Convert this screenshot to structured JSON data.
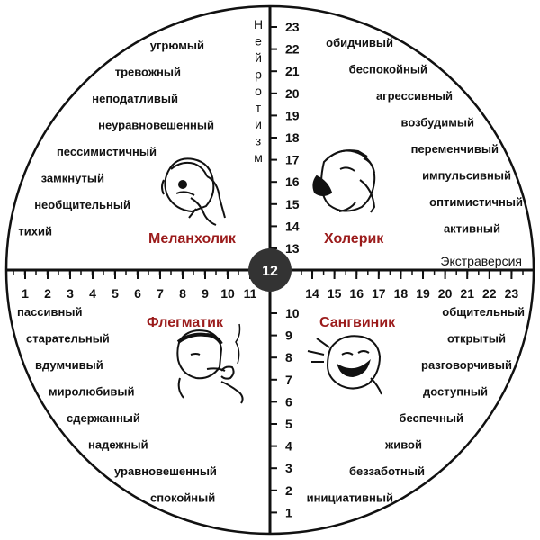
{
  "axes": {
    "vertical_label": "Нейротизм",
    "horizontal_label": "Экстраверсия",
    "center": "12",
    "top_ticks": [
      "23",
      "22",
      "21",
      "20",
      "19",
      "18",
      "17",
      "16",
      "15",
      "14",
      "13"
    ],
    "bottom_ticks": [
      "10",
      "9",
      "8",
      "7",
      "6",
      "5",
      "4",
      "3",
      "2",
      "1"
    ],
    "left_ticks": [
      "1",
      "2",
      "3",
      "4",
      "5",
      "6",
      "7",
      "8",
      "9",
      "10",
      "11"
    ],
    "right_ticks": [
      "14",
      "15",
      "16",
      "17",
      "18",
      "19",
      "20",
      "21",
      "22",
      "23"
    ]
  },
  "quadrants": {
    "melancholic": {
      "name": "Меланхолик",
      "traits": [
        "угрюмый",
        "тревожный",
        "неподатливый",
        "неуравновешенный",
        "пессимистичный",
        "замкнутый",
        "необщительный",
        "тихий"
      ]
    },
    "choleric": {
      "name": "Холерик",
      "traits": [
        "обидчивый",
        "беспокойный",
        "агрессивный",
        "возбудимый",
        "переменчивый",
        "импульсивный",
        "оптимистичный",
        "активный"
      ]
    },
    "phlegmatic": {
      "name": "Флегматик",
      "traits": [
        "пассивный",
        "старательный",
        "вдумчивый",
        "миролюбивый",
        "сдержанный",
        "надежный",
        "уравновешенный",
        "спокойный"
      ]
    },
    "sanguine": {
      "name": "Сангвиник",
      "traits": [
        "общительный",
        "открытый",
        "разговорчивый",
        "доступный",
        "беспечный",
        "живой",
        "беззаботный",
        "инициативный"
      ]
    }
  },
  "colors": {
    "type_name": "#9b1b1b",
    "lines": "#111111",
    "center_circle": "#333333"
  }
}
